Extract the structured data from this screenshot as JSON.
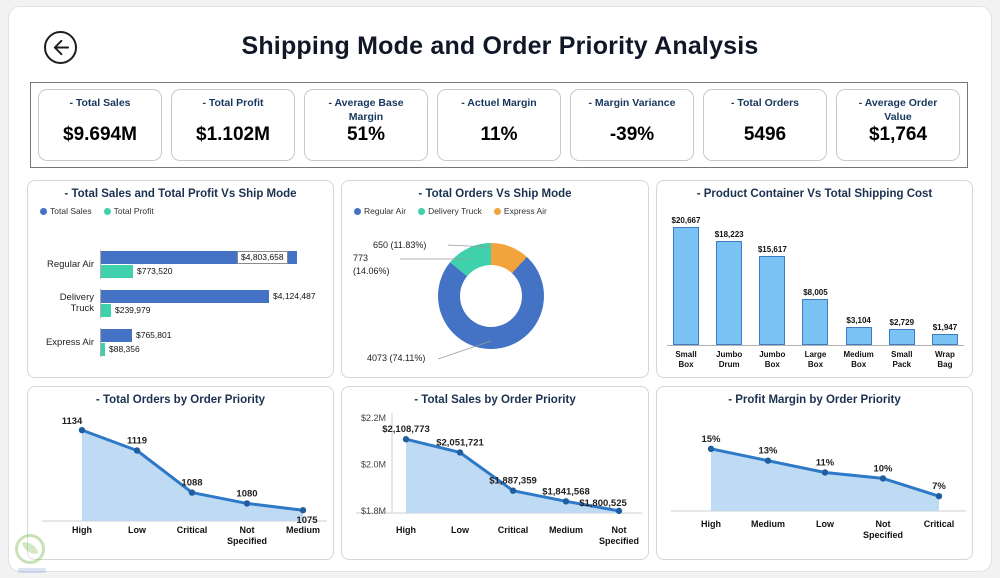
{
  "header": {
    "title": "Shipping Mode and Order Priority Analysis"
  },
  "kpis": [
    {
      "label": "- Total Sales",
      "value": "$9.694M"
    },
    {
      "label": "- Total Profit",
      "value": "$1.102M"
    },
    {
      "label": "- Average Base Margin",
      "value": "51%"
    },
    {
      "label": "- Actuel Margin",
      "value": "11%"
    },
    {
      "label": "- Margin Variance",
      "value": "-39%"
    },
    {
      "label": "- Total Orders",
      "value": "5496"
    },
    {
      "label": "- Average Order Value",
      "value": "$1,764"
    }
  ],
  "chart_data": [
    {
      "id": "sales-profit-by-shipmode",
      "type": "bar",
      "orientation": "horizontal",
      "title": "- Total Sales and Total Profit Vs Ship Mode",
      "categories": [
        "Regular Air",
        "Delivery Truck",
        "Express Air"
      ],
      "series": [
        {
          "name": "Total Sales",
          "color": "#4472C4",
          "values": [
            4803658,
            4124487,
            765801
          ],
          "labels": [
            "$4,803,658",
            "$4,124,487",
            "$765,801"
          ]
        },
        {
          "name": "Total Profit",
          "color": "#3FD0AC",
          "values": [
            773520,
            239979,
            88356
          ],
          "labels": [
            "$773,520",
            "$239,979",
            "$88,356"
          ]
        }
      ]
    },
    {
      "id": "orders-by-shipmode",
      "type": "pie",
      "title": "- Total Orders Vs Ship Mode",
      "total": 5496,
      "slices": [
        {
          "label": "Regular Air",
          "color": "#4472C4",
          "value": 4073,
          "pct": "74.11%",
          "text_lines": [
            "4073 (74.11%)"
          ]
        },
        {
          "label": "Delivery Truck",
          "color": "#3FD0AC",
          "value": 773,
          "pct": "14.06%",
          "text_lines": [
            "773",
            "(14.06%)"
          ]
        },
        {
          "label": "Express Air",
          "color": "#F2A33C",
          "value": 650,
          "pct": "11.83%",
          "text_lines": [
            "650 (11.83%)"
          ]
        }
      ]
    },
    {
      "id": "shipping-cost-by-container",
      "type": "bar",
      "title": "- Product Container Vs Total Shipping Cost",
      "categories": [
        "Small Box",
        "Jumbo Drum",
        "Jumbo Box",
        "Large Box",
        "Medium Box",
        "Small Pack",
        "Wrap Bag"
      ],
      "values": [
        20667,
        18223,
        15617,
        8005,
        3104,
        2729,
        1947
      ],
      "labels": [
        "$20,667",
        "$18,223",
        "$15,617",
        "$8,005",
        "$3,104",
        "$2,729",
        "$1,947"
      ],
      "bar_color": "#7CC3F5",
      "bar_border": "#3E7CC2"
    },
    {
      "id": "orders-by-priority",
      "type": "area",
      "title": "- Total Orders by Order Priority",
      "categories": [
        "High",
        "Low",
        "Critical",
        "Not Specified",
        "Medium"
      ],
      "values": [
        1134,
        1119,
        1088,
        1080,
        1075
      ],
      "labels": [
        "1134",
        "1119",
        "1088",
        "1080",
        "1075"
      ],
      "ylim": [
        1070,
        1140
      ]
    },
    {
      "id": "sales-by-priority",
      "type": "area",
      "title": "- Total Sales by Order Priority",
      "categories": [
        "High",
        "Low",
        "Critical",
        "Medium",
        "Not Specified"
      ],
      "values": [
        2108773,
        2051721,
        1887359,
        1841568,
        1800525
      ],
      "labels": [
        "$2,108,773",
        "$2,051,721",
        "$1,887,359",
        "$1,841,568",
        "$1,800,525"
      ],
      "ylim": [
        1800000,
        2200000
      ],
      "yticks": [
        {
          "label": "$2.2M",
          "value": 2200000
        },
        {
          "label": "$2.0M",
          "value": 2000000
        },
        {
          "label": "$1.8M",
          "value": 1800000
        }
      ]
    },
    {
      "id": "margin-by-priority",
      "type": "area",
      "title": "- Profit Margin by Order Priority",
      "categories": [
        "High",
        "Medium",
        "Low",
        "Not Specified",
        "Critical"
      ],
      "values": [
        15,
        13,
        11,
        10,
        7
      ],
      "labels": [
        "15%",
        "13%",
        "11%",
        "10%",
        "7%"
      ],
      "ylim": [
        5,
        17
      ]
    }
  ],
  "colors": {
    "accent_blue": "#4472C4",
    "accent_teal": "#3FD0AC",
    "accent_orange": "#F2A33C",
    "light_blue_bar": "#7CC3F5",
    "line_blue": "#2E79C7",
    "dot_blue": "#1F5FA0",
    "area_blue": "#BCD8F2",
    "navy_text": "#17375E"
  },
  "icons": {
    "back": "back-arrow",
    "watermark": "leaf-logo"
  }
}
